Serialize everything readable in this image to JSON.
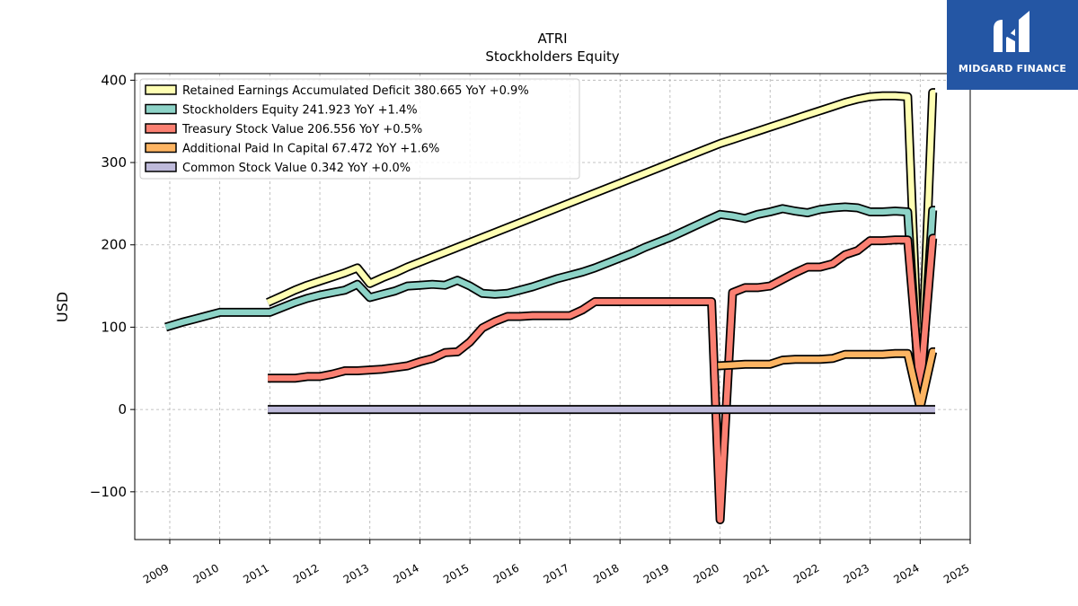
{
  "brand": {
    "name": "MIDGARD FINANCE",
    "logo_icon": "midgard-m-logo-icon",
    "color": "#2456a4"
  },
  "chart_data": {
    "type": "line",
    "title": "ATRI",
    "subtitle": "Stockholders  Equity",
    "ylabel": "USD",
    "xlabel": "",
    "xlim": [
      2008.3,
      2025.0
    ],
    "ylim": [
      -158,
      408
    ],
    "yticks": [
      -100,
      0,
      100,
      200,
      300,
      400
    ],
    "ytick_labels": [
      "−100",
      "0",
      "100",
      "200",
      "300",
      "400"
    ],
    "xticks": [
      2009,
      2010,
      2011,
      2012,
      2013,
      2014,
      2015,
      2016,
      2017,
      2018,
      2019,
      2020,
      2021,
      2022,
      2023,
      2024,
      2025
    ],
    "xtick_labels": [
      "2009",
      "2010",
      "2011",
      "2012",
      "2013",
      "2014",
      "2015",
      "2016",
      "2017",
      "2018",
      "2019",
      "2020",
      "2021",
      "2022",
      "2023",
      "2024",
      "2025"
    ],
    "grid": true,
    "legend_position": "top-left",
    "series": [
      {
        "name": "Retained Earnings Accumulated Deficit",
        "legend_label": "Retained Earnings Accumulated Deficit  380.665 YoY +0.9%",
        "color": "#ffffb3",
        "points": [
          [
            2010.96,
            130
          ],
          [
            2011.25,
            138
          ],
          [
            2011.5,
            145
          ],
          [
            2011.75,
            151
          ],
          [
            2012.0,
            156
          ],
          [
            2012.25,
            161
          ],
          [
            2012.5,
            166
          ],
          [
            2012.75,
            172
          ],
          [
            2013.0,
            153
          ],
          [
            2013.25,
            160
          ],
          [
            2013.5,
            166
          ],
          [
            2013.75,
            173
          ],
          [
            2014.0,
            179
          ],
          [
            2014.25,
            185
          ],
          [
            2014.5,
            191
          ],
          [
            2014.75,
            197
          ],
          [
            2015.0,
            203
          ],
          [
            2015.25,
            209
          ],
          [
            2015.5,
            215
          ],
          [
            2015.75,
            221
          ],
          [
            2016.0,
            227
          ],
          [
            2016.25,
            233
          ],
          [
            2016.5,
            239
          ],
          [
            2016.75,
            245
          ],
          [
            2017.0,
            251
          ],
          [
            2017.25,
            257
          ],
          [
            2017.5,
            263
          ],
          [
            2017.75,
            269
          ],
          [
            2018.0,
            275
          ],
          [
            2018.25,
            281
          ],
          [
            2018.5,
            287
          ],
          [
            2018.75,
            293
          ],
          [
            2019.0,
            299
          ],
          [
            2019.25,
            305
          ],
          [
            2019.5,
            311
          ],
          [
            2019.75,
            317
          ],
          [
            2020.0,
            323
          ],
          [
            2020.25,
            328
          ],
          [
            2020.5,
            333
          ],
          [
            2020.75,
            338
          ],
          [
            2021.0,
            343
          ],
          [
            2021.25,
            348
          ],
          [
            2021.5,
            353
          ],
          [
            2021.75,
            358
          ],
          [
            2022.0,
            363
          ],
          [
            2022.25,
            368
          ],
          [
            2022.5,
            373
          ],
          [
            2022.75,
            377
          ],
          [
            2023.0,
            380
          ],
          [
            2023.25,
            381
          ],
          [
            2023.5,
            381
          ],
          [
            2023.75,
            380
          ],
          [
            2024.0,
            5
          ],
          [
            2024.25,
            385
          ],
          [
            2024.3,
            385
          ]
        ]
      },
      {
        "name": "Stockholders Equity",
        "legend_label": "Stockholders Equity  241.923 YoY +1.4%",
        "color": "#8dd3c7",
        "points": [
          [
            2008.92,
            100
          ],
          [
            2009.25,
            106
          ],
          [
            2009.5,
            110
          ],
          [
            2009.75,
            114
          ],
          [
            2010.0,
            118
          ],
          [
            2010.25,
            118
          ],
          [
            2010.5,
            118
          ],
          [
            2010.75,
            118
          ],
          [
            2011.0,
            118
          ],
          [
            2011.25,
            124
          ],
          [
            2011.5,
            130
          ],
          [
            2011.75,
            135
          ],
          [
            2012.0,
            139
          ],
          [
            2012.25,
            142
          ],
          [
            2012.5,
            145
          ],
          [
            2012.75,
            152
          ],
          [
            2013.0,
            136
          ],
          [
            2013.25,
            140
          ],
          [
            2013.5,
            144
          ],
          [
            2013.75,
            150
          ],
          [
            2014.0,
            151
          ],
          [
            2014.25,
            152
          ],
          [
            2014.5,
            151
          ],
          [
            2014.75,
            157
          ],
          [
            2015.0,
            150
          ],
          [
            2015.25,
            141
          ],
          [
            2015.5,
            140
          ],
          [
            2015.75,
            141
          ],
          [
            2016.0,
            145
          ],
          [
            2016.25,
            149
          ],
          [
            2016.5,
            154
          ],
          [
            2016.75,
            159
          ],
          [
            2017.0,
            163
          ],
          [
            2017.25,
            167
          ],
          [
            2017.5,
            172
          ],
          [
            2017.75,
            178
          ],
          [
            2018.0,
            184
          ],
          [
            2018.25,
            190
          ],
          [
            2018.5,
            197
          ],
          [
            2018.75,
            203
          ],
          [
            2019.0,
            209
          ],
          [
            2019.25,
            216
          ],
          [
            2019.5,
            223
          ],
          [
            2019.75,
            230
          ],
          [
            2020.0,
            237
          ],
          [
            2020.25,
            235
          ],
          [
            2020.5,
            232
          ],
          [
            2020.75,
            237
          ],
          [
            2021.0,
            240
          ],
          [
            2021.25,
            244
          ],
          [
            2021.5,
            241
          ],
          [
            2021.75,
            239
          ],
          [
            2022.0,
            243
          ],
          [
            2022.25,
            245
          ],
          [
            2022.5,
            246
          ],
          [
            2022.75,
            245
          ],
          [
            2023.0,
            240
          ],
          [
            2023.25,
            240
          ],
          [
            2023.5,
            241
          ],
          [
            2023.75,
            240
          ],
          [
            2024.0,
            5
          ],
          [
            2024.25,
            242
          ],
          [
            2024.3,
            242
          ]
        ]
      },
      {
        "name": "Treasury Stock Value",
        "legend_label": "Treasury Stock Value  206.556 YoY +0.5%",
        "color": "#fb8072",
        "points": [
          [
            2010.96,
            38
          ],
          [
            2011.25,
            38
          ],
          [
            2011.5,
            38
          ],
          [
            2011.75,
            40
          ],
          [
            2012.0,
            40
          ],
          [
            2012.25,
            43
          ],
          [
            2012.5,
            47
          ],
          [
            2012.75,
            47
          ],
          [
            2013.0,
            48
          ],
          [
            2013.25,
            49
          ],
          [
            2013.5,
            51
          ],
          [
            2013.75,
            53
          ],
          [
            2014.0,
            58
          ],
          [
            2014.25,
            62
          ],
          [
            2014.5,
            69
          ],
          [
            2014.75,
            70
          ],
          [
            2015.0,
            82
          ],
          [
            2015.25,
            99
          ],
          [
            2015.5,
            107
          ],
          [
            2015.75,
            113
          ],
          [
            2016.0,
            113
          ],
          [
            2016.25,
            114
          ],
          [
            2016.5,
            114
          ],
          [
            2016.75,
            114
          ],
          [
            2017.0,
            114
          ],
          [
            2017.25,
            121
          ],
          [
            2017.5,
            131
          ],
          [
            2017.75,
            131
          ],
          [
            2018.0,
            131
          ],
          [
            2018.25,
            131
          ],
          [
            2018.5,
            131
          ],
          [
            2018.75,
            131
          ],
          [
            2019.0,
            131
          ],
          [
            2019.25,
            131
          ],
          [
            2019.5,
            131
          ],
          [
            2019.75,
            131
          ],
          [
            2019.83,
            131
          ],
          [
            2020.0,
            -134
          ],
          [
            2020.25,
            142
          ],
          [
            2020.5,
            148
          ],
          [
            2020.75,
            148
          ],
          [
            2021.0,
            150
          ],
          [
            2021.25,
            158
          ],
          [
            2021.5,
            166
          ],
          [
            2021.75,
            173
          ],
          [
            2022.0,
            173
          ],
          [
            2022.25,
            177
          ],
          [
            2022.5,
            188
          ],
          [
            2022.75,
            193
          ],
          [
            2023.0,
            205
          ],
          [
            2023.25,
            205
          ],
          [
            2023.5,
            206
          ],
          [
            2023.75,
            206
          ],
          [
            2024.0,
            25
          ],
          [
            2024.25,
            208
          ],
          [
            2024.3,
            208
          ]
        ]
      },
      {
        "name": "Additional Paid In Capital",
        "legend_label": "Additional Paid In Capital  67.472 YoY +1.6%",
        "color": "#fdb462",
        "points": [
          [
            2019.96,
            53
          ],
          [
            2020.25,
            54
          ],
          [
            2020.5,
            55
          ],
          [
            2020.75,
            55
          ],
          [
            2021.0,
            55
          ],
          [
            2021.25,
            60
          ],
          [
            2021.5,
            61
          ],
          [
            2021.75,
            61
          ],
          [
            2022.0,
            61
          ],
          [
            2022.25,
            62
          ],
          [
            2022.5,
            67
          ],
          [
            2022.75,
            67
          ],
          [
            2023.0,
            67
          ],
          [
            2023.25,
            67
          ],
          [
            2023.5,
            68
          ],
          [
            2023.75,
            68
          ],
          [
            2024.0,
            2
          ],
          [
            2024.25,
            70
          ],
          [
            2024.3,
            70
          ]
        ]
      },
      {
        "name": "Common Stock Value",
        "legend_label": "Common Stock Value  0.342 YoY +0.0%",
        "color": "#bebada",
        "points": [
          [
            2010.96,
            0
          ],
          [
            2024.3,
            0
          ]
        ]
      }
    ]
  }
}
